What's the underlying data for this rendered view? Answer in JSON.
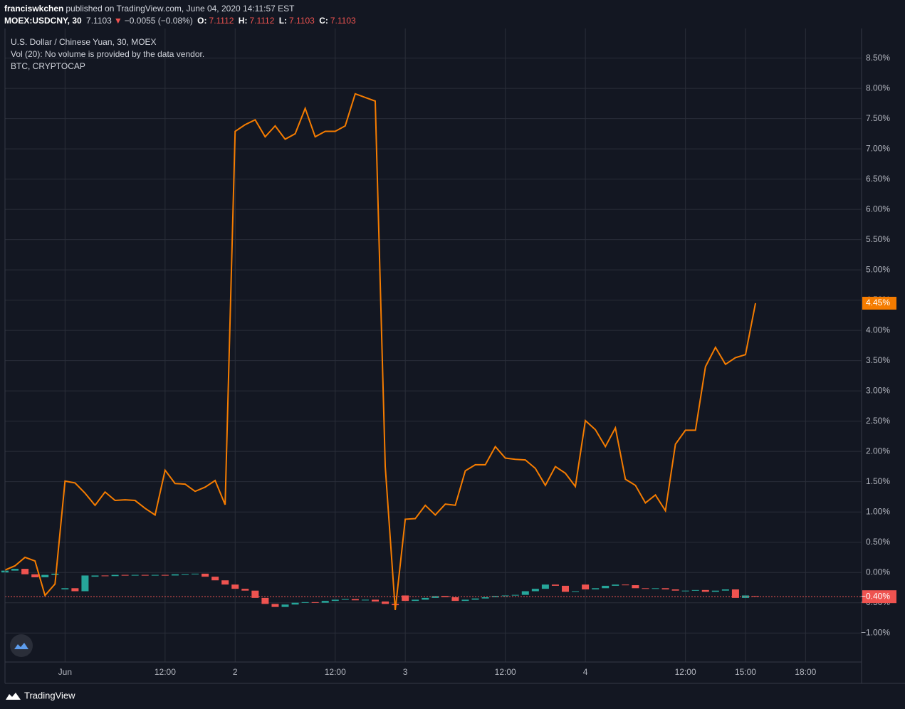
{
  "header": {
    "author": "franciswkchen",
    "published": "published on TradingView.com, June 04, 2020 14:11:57 EST",
    "symbol": "MOEX:USDCNY, 30",
    "last": "7.1103",
    "arrow": "▼",
    "change": "−0.0055 (−0.08%)",
    "ohlc": [
      {
        "label": "O:",
        "value": "7.1112"
      },
      {
        "label": "H:",
        "value": "7.1112"
      },
      {
        "label": "L:",
        "value": "7.1103"
      },
      {
        "label": "C:",
        "value": "7.1103"
      }
    ]
  },
  "chart_data": {
    "type": "candlestick",
    "vol_note": "Vol (20): No volume is provided by the data vendor.",
    "xlim": [
      0,
      85.6
    ],
    "ylim": [
      -1.48,
      8.99
    ],
    "xticks": [
      {
        "value": 6,
        "label": "Jun"
      },
      {
        "value": 16,
        "label": "12:00"
      },
      {
        "value": 23,
        "label": "2"
      },
      {
        "value": 33,
        "label": "12:00"
      },
      {
        "value": 40,
        "label": "3"
      },
      {
        "value": 50,
        "label": "12:00"
      },
      {
        "value": 58,
        "label": "4"
      },
      {
        "value": 68,
        "label": "12:00"
      },
      {
        "value": 74,
        "label": "15:00"
      },
      {
        "value": 80,
        "label": "18:00"
      }
    ],
    "yticks": [
      {
        "value": -1,
        "label": "−1.00%"
      },
      {
        "value": -0.5,
        "label": "−0.50%"
      },
      {
        "value": 0,
        "label": "0.00%"
      },
      {
        "value": 0.5,
        "label": "0.50%"
      },
      {
        "value": 1,
        "label": "1.00%"
      },
      {
        "value": 1.5,
        "label": "1.50%"
      },
      {
        "value": 2,
        "label": "2.00%"
      },
      {
        "value": 2.5,
        "label": "2.50%"
      },
      {
        "value": 3,
        "label": "3.00%"
      },
      {
        "value": 3.5,
        "label": "3.50%"
      },
      {
        "value": 4,
        "label": "4.00%"
      },
      {
        "value": 4.5,
        "label": "4.50%"
      },
      {
        "value": 5,
        "label": "5.00%"
      },
      {
        "value": 5.5,
        "label": "5.50%"
      },
      {
        "value": 6,
        "label": "6.00%"
      },
      {
        "value": 6.5,
        "label": "6.50%"
      },
      {
        "value": 7,
        "label": "7.00%"
      },
      {
        "value": 7.5,
        "label": "7.50%"
      },
      {
        "value": 8,
        "label": "8.00%"
      },
      {
        "value": 8.5,
        "label": "8.50%"
      }
    ],
    "grid": true,
    "series": [
      {
        "name": "U.S. Dollar / Chinese Yuan, 30, MOEX",
        "type": "candlestick",
        "up_color": "#26a69a",
        "down_color": "#ef5350",
        "x": [
          0,
          1,
          2,
          3,
          4,
          5,
          6,
          7,
          8,
          9,
          10,
          11,
          12,
          13,
          14,
          15,
          16,
          17,
          18,
          19,
          20,
          21,
          22,
          23,
          24,
          25,
          26,
          27,
          28,
          29,
          30,
          31,
          32,
          33,
          34,
          35,
          36,
          37,
          38,
          39,
          40,
          41,
          42,
          43,
          44,
          45,
          46,
          47,
          48,
          49,
          50,
          51,
          52,
          53,
          54,
          55,
          56,
          57,
          58,
          59,
          60,
          61,
          62,
          63,
          64,
          65,
          66,
          67,
          68,
          69,
          70,
          71,
          72,
          73,
          74,
          75
        ],
        "open": [
          0.0,
          0.03,
          0.06,
          -0.03,
          -0.08,
          -0.04,
          -0.28,
          -0.26,
          -0.31,
          -0.07,
          -0.05,
          -0.06,
          -0.04,
          -0.05,
          -0.04,
          -0.05,
          -0.04,
          -0.05,
          -0.03,
          -0.03,
          -0.02,
          -0.07,
          -0.13,
          -0.2,
          -0.27,
          -0.3,
          -0.42,
          -0.52,
          -0.57,
          -0.53,
          -0.5,
          -0.49,
          -0.5,
          -0.47,
          -0.45,
          -0.44,
          -0.46,
          -0.45,
          -0.48,
          -0.52,
          -0.38,
          -0.47,
          -0.45,
          -0.42,
          -0.39,
          -0.41,
          -0.47,
          -0.45,
          -0.43,
          -0.41,
          -0.39,
          -0.38,
          -0.37,
          -0.31,
          -0.27,
          -0.2,
          -0.22,
          -0.32,
          -0.2,
          -0.28,
          -0.26,
          -0.22,
          -0.2,
          -0.21,
          -0.26,
          -0.27,
          -0.26,
          -0.28,
          -0.3,
          -0.3,
          -0.29,
          -0.32,
          -0.3,
          -0.28,
          -0.42,
          -0.39
        ],
        "close": [
          0.03,
          0.06,
          -0.03,
          -0.08,
          -0.04,
          -0.02,
          -0.26,
          -0.31,
          -0.05,
          -0.05,
          -0.06,
          -0.04,
          -0.05,
          -0.04,
          -0.05,
          -0.04,
          -0.05,
          -0.03,
          -0.03,
          -0.02,
          -0.07,
          -0.13,
          -0.2,
          -0.27,
          -0.3,
          -0.42,
          -0.52,
          -0.57,
          -0.53,
          -0.5,
          -0.49,
          -0.5,
          -0.47,
          -0.45,
          -0.44,
          -0.46,
          -0.45,
          -0.48,
          -0.52,
          -0.54,
          -0.47,
          -0.45,
          -0.42,
          -0.39,
          -0.41,
          -0.47,
          -0.45,
          -0.43,
          -0.41,
          -0.39,
          -0.38,
          -0.37,
          -0.31,
          -0.27,
          -0.2,
          -0.22,
          -0.32,
          -0.31,
          -0.28,
          -0.26,
          -0.22,
          -0.2,
          -0.21,
          -0.26,
          -0.27,
          -0.26,
          -0.28,
          -0.3,
          -0.3,
          -0.29,
          -0.32,
          -0.3,
          -0.28,
          -0.42,
          -0.38,
          -0.4
        ]
      },
      {
        "name": "BTC, CRYPTOCAP",
        "type": "line",
        "color": "#f57c00",
        "x": [
          0,
          1,
          2,
          3,
          4,
          5,
          6,
          7,
          8,
          9,
          10,
          11,
          12,
          13,
          14,
          15,
          16,
          17,
          18,
          19,
          20,
          21,
          22,
          23,
          24,
          25,
          26,
          27,
          28,
          29,
          30,
          31,
          32,
          33,
          34,
          35,
          36,
          37,
          38,
          39,
          40,
          41,
          42,
          43,
          44,
          45,
          46,
          47,
          48,
          49,
          50,
          51,
          52,
          53,
          54,
          55,
          56,
          57,
          58,
          59,
          60,
          61,
          62,
          63,
          64,
          65,
          66,
          67,
          68,
          69,
          70,
          71,
          72,
          73,
          74,
          75
        ],
        "values": [
          0.04,
          0.11,
          0.25,
          0.19,
          -0.38,
          -0.19,
          1.51,
          1.48,
          1.31,
          1.11,
          1.33,
          1.19,
          1.2,
          1.19,
          1.06,
          0.95,
          1.69,
          1.47,
          1.46,
          1.34,
          1.41,
          1.52,
          1.12,
          7.29,
          7.4,
          7.48,
          7.2,
          7.38,
          7.16,
          7.25,
          7.67,
          7.2,
          7.29,
          7.29,
          7.38,
          7.91,
          7.85,
          7.79,
          1.75,
          -0.62,
          0.88,
          0.89,
          1.11,
          0.95,
          1.13,
          1.11,
          1.68,
          1.78,
          1.78,
          2.08,
          1.89,
          1.87,
          1.86,
          1.72,
          1.44,
          1.75,
          1.64,
          1.42,
          2.51,
          2.36,
          2.08,
          2.39,
          1.54,
          1.44,
          1.15,
          1.28,
          1.02,
          2.12,
          2.35,
          2.35,
          3.4,
          3.72,
          3.44,
          3.55,
          3.6,
          4.45
        ]
      }
    ],
    "price_labels": [
      {
        "value": 4.45,
        "label": "4.45%",
        "color": "#f57c00",
        "dashed_line": false
      },
      {
        "value": -0.4,
        "label": "−0.40%",
        "color": "#ef5350",
        "dashed_line": true
      }
    ]
  },
  "footer": {
    "brand": "TradingView"
  }
}
